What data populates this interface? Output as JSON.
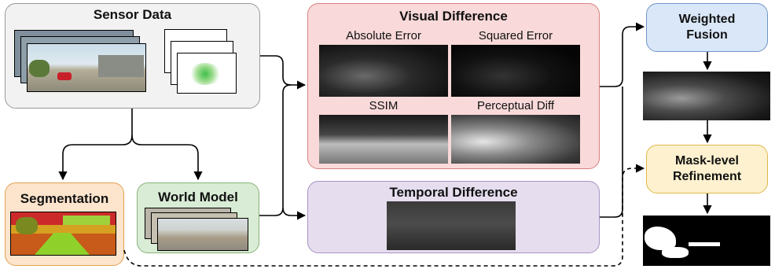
{
  "sensor": {
    "title": "Sensor Data"
  },
  "segmentation": {
    "title": "Segmentation"
  },
  "world_model": {
    "title": "World Model"
  },
  "visual_difference": {
    "title": "Visual Difference",
    "panels": [
      "Absolute Error",
      "Squared Error",
      "SSIM",
      "Perceptual Diff"
    ]
  },
  "temporal_difference": {
    "title": "Temporal Difference"
  },
  "weighted_fusion": {
    "line1": "Weighted",
    "line2": "Fusion"
  },
  "mask_refinement": {
    "line1": "Mask-level",
    "line2": "Refinement"
  },
  "colors": {
    "sensor_fill": "#f2f2f2",
    "segmentation_fill": "#fde4cc",
    "world_model_fill": "#d9ecd5",
    "visual_fill": "#f9d9d9",
    "temporal_fill": "#e6deef",
    "fusion_fill": "#d9e7f8",
    "refinement_fill": "#fdf1cf"
  }
}
